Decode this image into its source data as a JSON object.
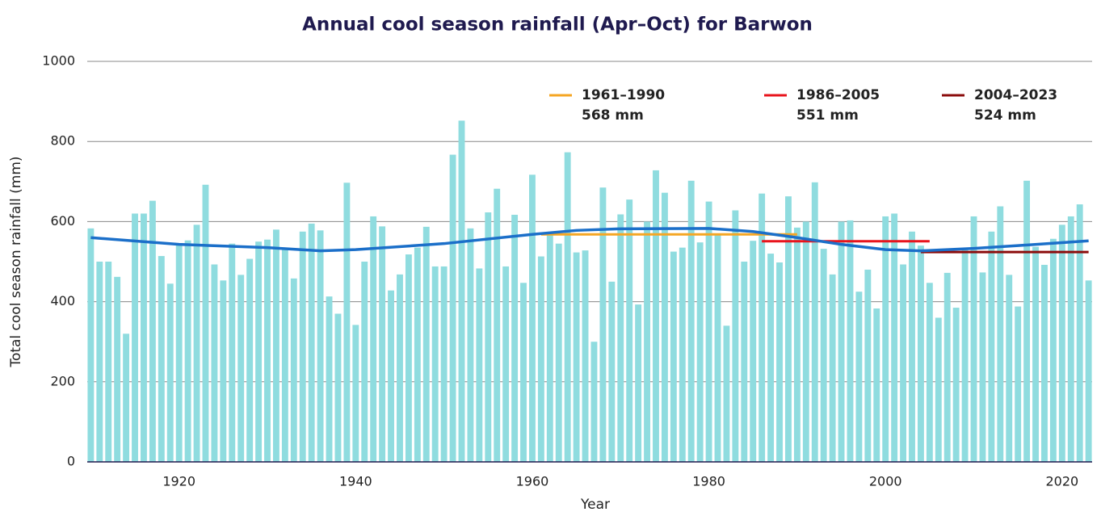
{
  "chart_data": {
    "type": "bar",
    "title": "Annual cool season rainfall (Apr–Oct) for Barwon",
    "x_label": "Year",
    "y_label": "Total cool season rainfall (mm)",
    "x": [
      1910,
      1911,
      1912,
      1913,
      1914,
      1915,
      1916,
      1917,
      1918,
      1919,
      1920,
      1921,
      1922,
      1923,
      1924,
      1925,
      1926,
      1927,
      1928,
      1929,
      1930,
      1931,
      1932,
      1933,
      1934,
      1935,
      1936,
      1937,
      1938,
      1939,
      1940,
      1941,
      1942,
      1943,
      1944,
      1945,
      1946,
      1947,
      1948,
      1949,
      1950,
      1951,
      1952,
      1953,
      1954,
      1955,
      1956,
      1957,
      1958,
      1959,
      1960,
      1961,
      1962,
      1963,
      1964,
      1965,
      1966,
      1967,
      1968,
      1969,
      1970,
      1971,
      1972,
      1973,
      1974,
      1975,
      1976,
      1977,
      1978,
      1979,
      1980,
      1981,
      1982,
      1983,
      1984,
      1985,
      1986,
      1987,
      1988,
      1989,
      1990,
      1991,
      1992,
      1993,
      1994,
      1995,
      1996,
      1997,
      1998,
      1999,
      2000,
      2001,
      2002,
      2003,
      2004,
      2005,
      2006,
      2007,
      2008,
      2009,
      2010,
      2011,
      2012,
      2013,
      2014,
      2015,
      2016,
      2017,
      2018,
      2019,
      2020,
      2021,
      2022,
      2023
    ],
    "values": [
      583,
      500,
      500,
      462,
      320,
      620,
      620,
      652,
      514,
      445,
      545,
      553,
      592,
      692,
      493,
      453,
      545,
      467,
      507,
      550,
      555,
      580,
      535,
      458,
      575,
      595,
      578,
      413,
      370,
      697,
      342,
      500,
      613,
      588,
      428,
      468,
      518,
      535,
      587,
      488,
      488,
      767,
      852,
      583,
      483,
      623,
      682,
      488,
      617,
      447,
      717,
      513,
      568,
      545,
      773,
      523,
      528,
      300,
      685,
      450,
      618,
      655,
      393,
      600,
      728,
      672,
      525,
      535,
      702,
      548,
      650,
      570,
      340,
      628,
      500,
      552,
      670,
      520,
      498,
      663,
      585,
      600,
      698,
      532,
      468,
      600,
      603,
      425,
      480,
      383,
      613,
      620,
      493,
      575,
      540,
      447,
      360,
      472,
      385,
      530,
      613,
      473,
      575,
      638,
      467,
      388,
      702,
      537,
      492,
      557,
      592,
      613,
      643,
      453
    ],
    "color": "#8fdcdf",
    "trend": {
      "color": "#1b6fc9",
      "x": [
        1910,
        1920,
        1930,
        1936,
        1940,
        1950,
        1960,
        1965,
        1970,
        1980,
        1985,
        1990,
        1995,
        2000,
        2004,
        2010,
        2015,
        2023
      ],
      "values": [
        560,
        543,
        535,
        527,
        530,
        545,
        568,
        578,
        582,
        583,
        575,
        560,
        543,
        530,
        527,
        533,
        540,
        552
      ]
    },
    "periods": [
      {
        "name": "1961–1990",
        "value": 568,
        "value_label": "568 mm",
        "start": 1961,
        "end": 1990,
        "color": "#f5a623"
      },
      {
        "name": "1986–2005",
        "value": 551,
        "value_label": "551 mm",
        "start": 1986,
        "end": 2005,
        "color": "#e8141c"
      },
      {
        "name": "2004–2023",
        "value": 524,
        "value_label": "524 mm",
        "start": 2004,
        "end": 2023,
        "color": "#8b0c0c"
      }
    ],
    "xlim": [
      1909.6,
      2023.4
    ],
    "xticks": [
      1920,
      1940,
      1960,
      1980,
      2000,
      2020
    ],
    "ylim": [
      0,
      1000
    ],
    "yticks": [
      0,
      200,
      400,
      600,
      800,
      1000
    ],
    "grid": true
  }
}
